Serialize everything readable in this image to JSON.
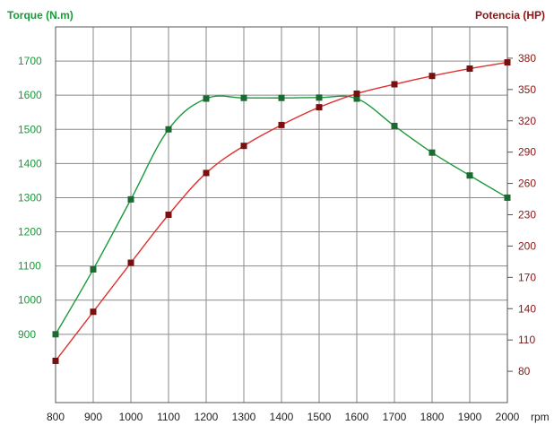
{
  "chart_data": {
    "type": "line",
    "title": "",
    "xlabel": "rpm",
    "x": [
      800,
      900,
      1000,
      1100,
      1200,
      1300,
      1400,
      1500,
      1600,
      1700,
      1800,
      1900,
      2000
    ],
    "xlim": [
      800,
      2000
    ],
    "y_left": {
      "label": "Torque (N.m)",
      "color": "#1a9a3a",
      "range": [
        700,
        1800
      ],
      "ticks": [
        900,
        1000,
        1100,
        1200,
        1300,
        1400,
        1500,
        1600,
        1700
      ]
    },
    "y_right": {
      "label": "Potencia (HP)",
      "color": "#8b1414",
      "range": [
        50,
        410
      ],
      "ticks": [
        80,
        110,
        140,
        170,
        200,
        230,
        260,
        290,
        320,
        350,
        380
      ]
    },
    "grid": true,
    "series": [
      {
        "name": "Torque (N.m)",
        "axis": "left",
        "color": "#1a9a3a",
        "marker_color": "#1b6b30",
        "values": [
          900,
          1090,
          1295,
          1500,
          1590,
          1592,
          1592,
          1593,
          1590,
          1510,
          1432,
          1365,
          1300
        ]
      },
      {
        "name": "Potencia (HP)",
        "axis": "right",
        "color": "#e03030",
        "marker_color": "#7a0f0f",
        "values": [
          90,
          137,
          184,
          230,
          270,
          296,
          316,
          333,
          346,
          355,
          363,
          370,
          376
        ]
      }
    ]
  }
}
